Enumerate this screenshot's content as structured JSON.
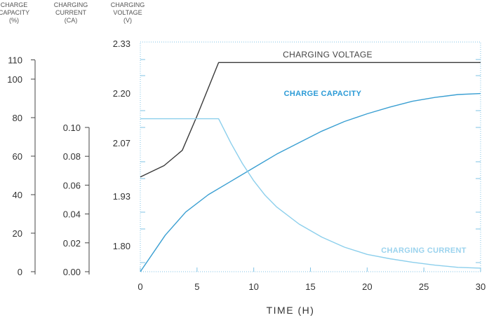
{
  "chart_data": {
    "type": "line",
    "xlabel": "TIME (H)",
    "x_ticks": [
      "0",
      "5",
      "10",
      "15",
      "20",
      "25",
      "30"
    ],
    "xlim": [
      0,
      30
    ],
    "axes": {
      "capacity": {
        "header": [
          "CHARGE",
          "CAPACITY",
          "(%)"
        ],
        "ticks": [
          "0",
          "20",
          "40",
          "60",
          "80",
          "100",
          "110"
        ],
        "tick_values": [
          0,
          20,
          40,
          60,
          80,
          100,
          110
        ],
        "range": [
          0,
          110
        ]
      },
      "current": {
        "header": [
          "CHARGING",
          "CURRENT",
          "(CA)"
        ],
        "ticks": [
          "0.00",
          "0.02",
          "0.04",
          "0.06",
          "0.08",
          "0.10"
        ],
        "tick_values": [
          0.0,
          0.02,
          0.04,
          0.06,
          0.08,
          0.1
        ],
        "range": [
          0,
          0.15
        ]
      },
      "voltage": {
        "header": [
          "CHARGING",
          "VOLTAGE",
          "(V)"
        ],
        "ticks": [
          "1.80",
          "1.93",
          "2.07",
          "2.20",
          "2.33"
        ],
        "tick_values": [
          1.8,
          1.93,
          2.07,
          2.2,
          2.33
        ],
        "range": [
          1.73,
          2.33
        ]
      }
    },
    "series": [
      {
        "name": "CHARGING VOLTAGE",
        "axis": "voltage",
        "color": "#3a3a3a",
        "label_color": "#444444",
        "x": [
          0,
          2.1,
          3.7,
          5.0,
          6.9,
          30
        ],
        "y": [
          1.98,
          2.01,
          2.05,
          2.14,
          2.28,
          2.28
        ]
      },
      {
        "name": "CHARGE CAPACITY",
        "axis": "capacity",
        "color": "#3a9fd2",
        "label_color": "#2b9ad6",
        "x": [
          0,
          2.2,
          4.0,
          6.0,
          8.0,
          10,
          12,
          14,
          16,
          18,
          20,
          22,
          24,
          26,
          28,
          30
        ],
        "y": [
          0,
          19,
          31,
          40,
          47,
          54,
          61,
          67,
          73,
          78,
          82,
          85.5,
          88.5,
          90.5,
          92,
          92.5
        ]
      },
      {
        "name": "CHARGING CURRENT",
        "axis": "current",
        "color": "#8ccfec",
        "label_color": "#9bd3ee",
        "x": [
          0,
          6.9,
          8,
          9,
          10,
          11,
          12,
          14,
          16,
          18,
          20,
          22,
          24,
          26,
          28,
          30
        ],
        "y": [
          0.106,
          0.106,
          0.089,
          0.075,
          0.063,
          0.053,
          0.045,
          0.033,
          0.024,
          0.017,
          0.012,
          0.009,
          0.0065,
          0.0045,
          0.003,
          0.0025
        ]
      }
    ],
    "grid": false,
    "frame_color": "#7fc3e6"
  }
}
